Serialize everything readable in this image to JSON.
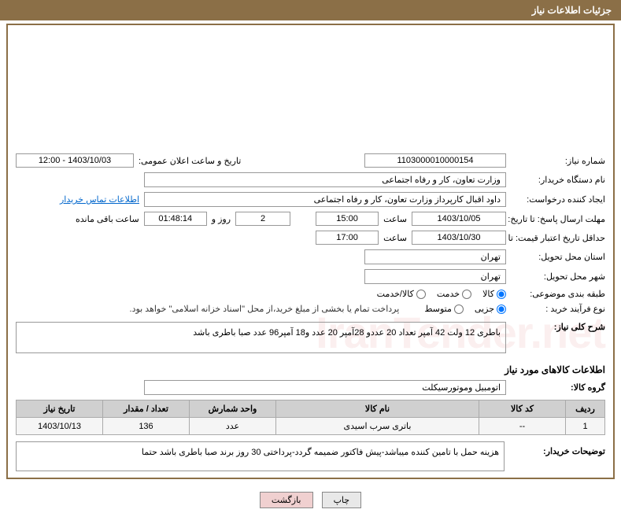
{
  "header": {
    "title": "جزئیات اطلاعات نیاز"
  },
  "fields": {
    "need_number_label": "شماره نیاز:",
    "need_number": "1103000010000154",
    "announce_label": "تاریخ و ساعت اعلان عمومی:",
    "announce_value": "1403/10/03 - 12:00",
    "buyer_org_label": "نام دستگاه خریدار:",
    "buyer_org": "وزارت تعاون، کار و رفاه اجتماعی",
    "requester_label": "ایجاد کننده درخواست:",
    "requester": "داود اقبال کارپرداز وزارت تعاون، کار و رفاه اجتماعی",
    "contact_link": "اطلاعات تماس خریدار",
    "response_deadline_label": "مهلت ارسال پاسخ: تا تاریخ:",
    "response_date": "1403/10/05",
    "time_label": "ساعت",
    "response_time": "15:00",
    "days_value": "2",
    "days_and": "روز و",
    "countdown": "01:48:14",
    "remaining": "ساعت باقی مانده",
    "validity_label": "حداقل تاریخ اعتبار قیمت: تا تاریخ:",
    "validity_date": "1403/10/30",
    "validity_time": "17:00",
    "province_label": "استان محل تحویل:",
    "province": "تهران",
    "city_label": "شهر محل تحویل:",
    "city": "تهران",
    "category_label": "طبقه بندی موضوعی:",
    "cat_goods": "کالا",
    "cat_service": "خدمت",
    "cat_goods_service": "کالا/خدمت",
    "process_label": "نوع فرآیند خرید :",
    "proc_small": "جزیی",
    "proc_medium": "متوسط",
    "payment_note": "پرداخت تمام یا بخشی از مبلغ خرید،از محل \"اسناد خزانه اسلامی\" خواهد بود.",
    "desc_label": "شرح کلی نیاز:",
    "desc_value": "باطری 12 ولت 42 آمپر تعداد 20 عددو 28آمپر 20 عدد و18 آمپر96 عدد صبا باطری باشد",
    "goods_info_title": "اطلاعات کالاهای مورد نیاز",
    "group_label": "گروه کالا:",
    "group_value": "اتومبیل وموتورسیکلت",
    "buyer_notes_label": "توضیحات خریدار:",
    "buyer_notes": "هزینه حمل با تامین کننده میباشد-پیش فاکتور ضمیمه گردد-پرداختی 30 روز  برند صبا باطری باشد حتما"
  },
  "table": {
    "headers": {
      "row": "ردیف",
      "code": "کد کالا",
      "name": "نام کالا",
      "unit": "واحد شمارش",
      "qty": "تعداد / مقدار",
      "date": "تاریخ نیاز"
    },
    "rows": [
      {
        "row": "1",
        "code": "--",
        "name": "باتری سرب اسیدی",
        "unit": "عدد",
        "qty": "136",
        "date": "1403/10/13"
      }
    ]
  },
  "buttons": {
    "print": "چاپ",
    "back": "بازگشت"
  },
  "colors": {
    "header_bg": "#8b6f47",
    "border": "#8b6f47",
    "link": "#0066cc",
    "th_bg": "#d0d0d0",
    "td_bg": "#f5f5f5"
  },
  "watermark": "IranTender.net"
}
